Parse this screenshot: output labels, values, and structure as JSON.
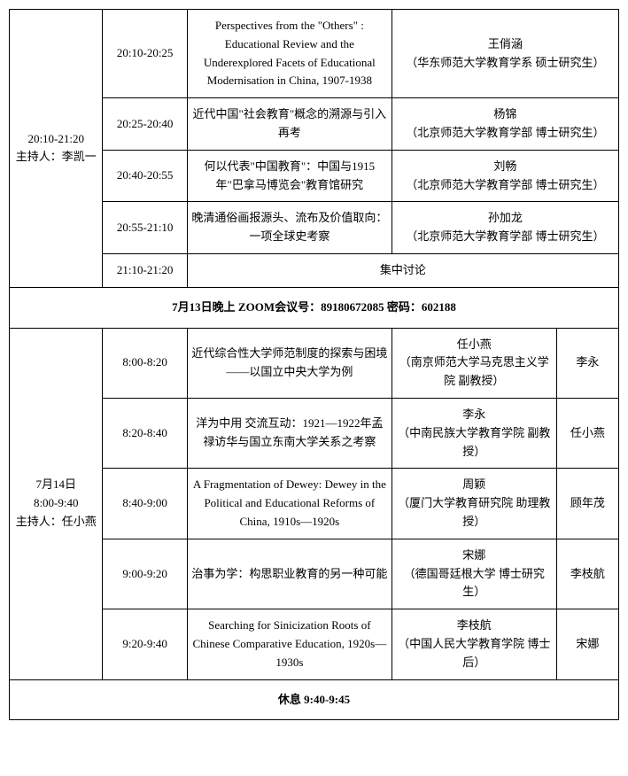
{
  "session1": {
    "header": "20:10-21:20\n主持人：李凯一",
    "rows": [
      {
        "time": "20:10-20:25",
        "title": "Perspectives from the \"Others\" : Educational Review and the Underexplored Facets of Educational Modernisation in China, 1907-1938",
        "speaker_name": "王俏涵",
        "speaker_affil": "（华东师范大学教育学系 硕士研究生）"
      },
      {
        "time": "20:25-20:40",
        "title": "近代中国\"社会教育\"概念的溯源与引入再考",
        "speaker_name": "杨锦",
        "speaker_affil": "（北京师范大学教育学部 博士研究生）"
      },
      {
        "time": "20:40-20:55",
        "title": "何以代表\"中国教育\"：中国与1915年\"巴拿马博览会\"教育馆研究",
        "speaker_name": "刘畅",
        "speaker_affil": "（北京师范大学教育学部 博士研究生）"
      },
      {
        "time": "20:55-21:10",
        "title": "晚清通俗画报源头、流布及价值取向：一项全球史考察",
        "speaker_name": "孙加龙",
        "speaker_affil": "（北京师范大学教育学部 博士研究生）"
      }
    ],
    "discussion": {
      "time": "21:10-21:20",
      "label": "集中讨论"
    }
  },
  "banner": "7月13日晚上 ZOOM会议号：89180672085 密码：602188",
  "session2": {
    "header": "7月14日\n8:00-9:40\n主持人：任小燕",
    "rows": [
      {
        "time": "8:00-8:20",
        "title": "近代综合性大学师范制度的探索与困境——以国立中央大学为例",
        "speaker_name": "任小燕",
        "speaker_affil": "（南京师范大学马克思主义学院 副教授）",
        "discussant": "李永"
      },
      {
        "time": "8:20-8:40",
        "title": "洋为中用 交流互动：1921—1922年孟禄访华与国立东南大学关系之考察",
        "speaker_name": "李永",
        "speaker_affil": "（中南民族大学教育学院 副教授）",
        "discussant": "任小燕"
      },
      {
        "time": "8:40-9:00",
        "title": "A Fragmentation of Dewey: Dewey in the Political and Educational Reforms of China, 1910s—1920s",
        "speaker_name": "周颖",
        "speaker_affil": "（厦门大学教育研究院 助理教授）",
        "discussant": "顾年茂"
      },
      {
        "time": "9:00-9:20",
        "title": "治事为学：构思职业教育的另一种可能",
        "speaker_name": "宋娜",
        "speaker_affil": "（德国哥廷根大学 博士研究生）",
        "discussant": "李枝航"
      },
      {
        "time": "9:20-9:40",
        "title": "Searching for Sinicization Roots of Chinese Comparative Education, 1920s—1930s",
        "speaker_name": "李枝航",
        "speaker_affil": "（中国人民大学教育学院 博士后）",
        "discussant": "宋娜"
      }
    ]
  },
  "break": "休息 9:40-9:45"
}
